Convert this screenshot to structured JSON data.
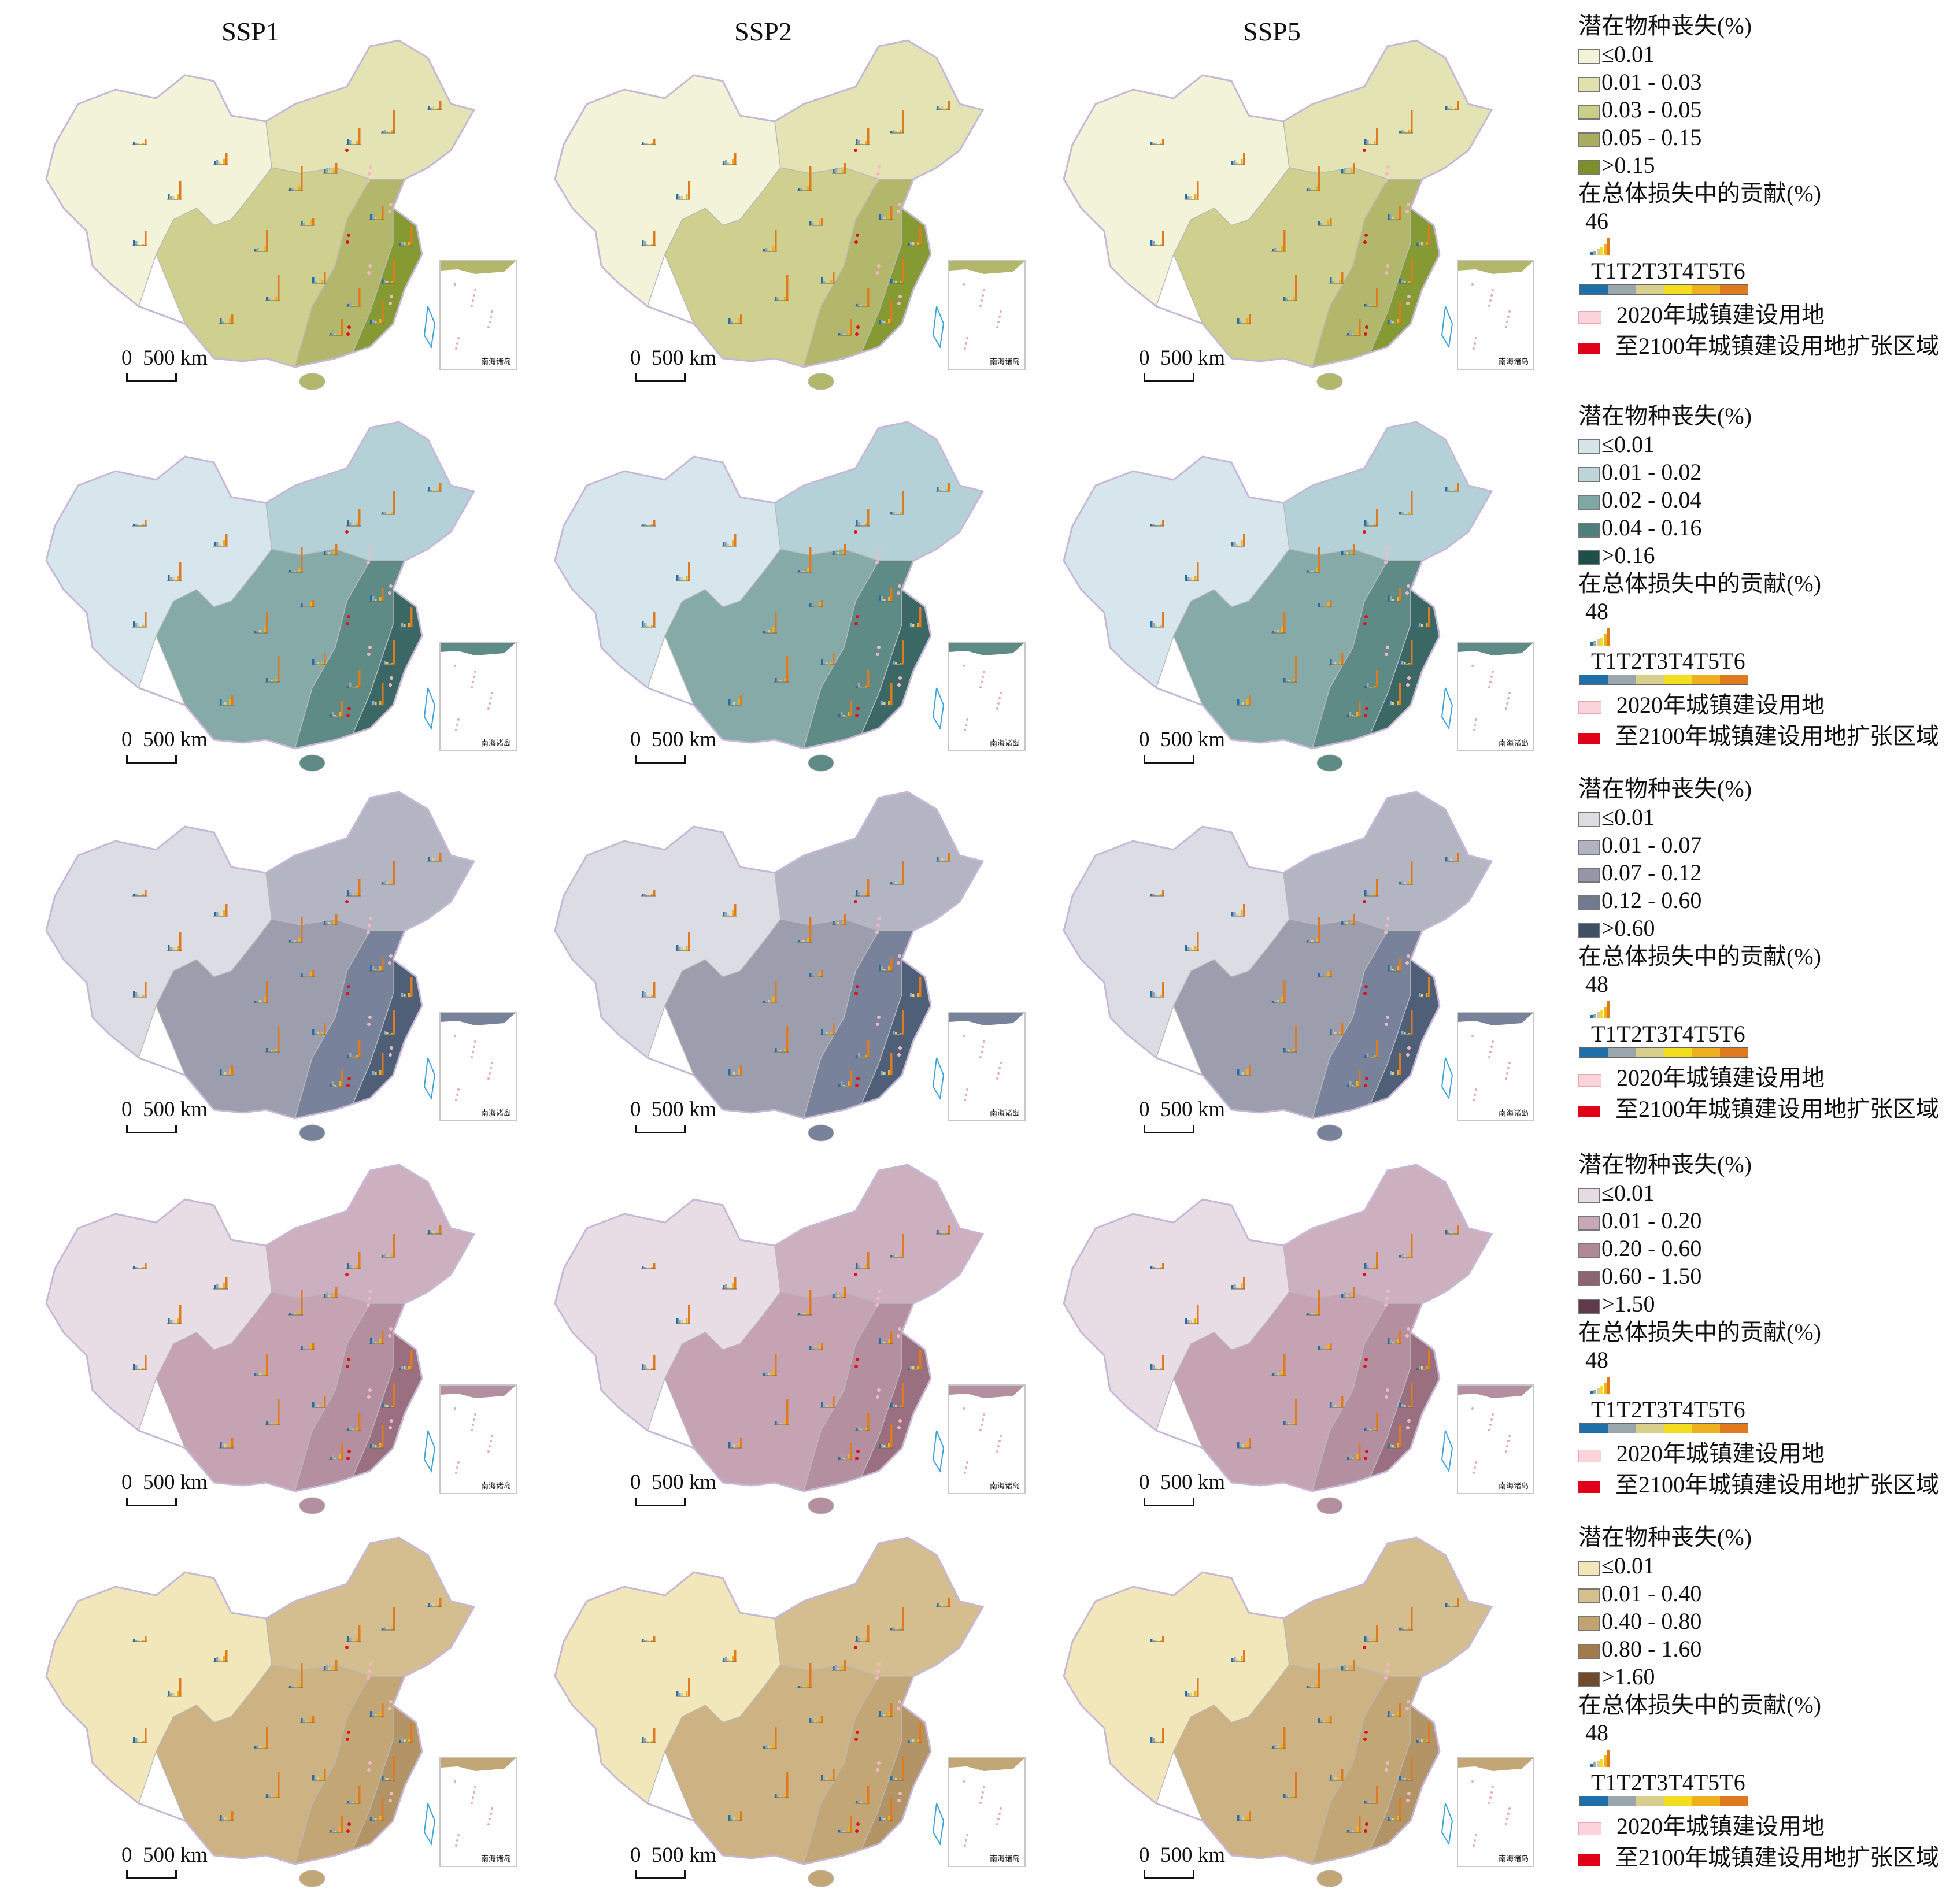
{
  "columns": [
    "SSP1",
    "SSP2",
    "SSP5"
  ],
  "scale_label": "0  500 km",
  "inset_label": "南海诸岛",
  "bar_colors": [
    "#1f6fa8",
    "#9aa8ae",
    "#d8cf8c",
    "#f2dd1e",
    "#efb01e",
    "#e07a1e"
  ],
  "rows": [
    {
      "legend": {
        "title": "潜在物种丧失(%)",
        "classes": [
          {
            "label": "≤0.01",
            "color": "#f3f3d9"
          },
          {
            "label": "0.01 - 0.03",
            "color": "#e1e1ad"
          },
          {
            "label": "0.03 - 0.05",
            "color": "#cdcd8a"
          },
          {
            "label": "0.05 - 0.15",
            "color": "#a9ad5d"
          },
          {
            "label": ">0.15",
            "color": "#7c8f2a"
          }
        ],
        "contribution_title": "在总体损失中的贡献(%)",
        "contribution_max": "46",
        "t_labels": "T1T2T3T4T5T6",
        "urban2020": "2020年城镇建设用地",
        "expansion2100": "至2100年城镇建设用地扩张区域"
      },
      "palette": {
        "west": "#f3f3da",
        "north": "#e3e3b4",
        "central": "#cfcf90",
        "east": "#b2b76b",
        "coast": "#869a33"
      }
    },
    {
      "legend": {
        "title": "潜在物种丧失(%)",
        "classes": [
          {
            "label": "≤0.01",
            "color": "#d5e5ea"
          },
          {
            "label": "0.01 - 0.02",
            "color": "#bdd5da"
          },
          {
            "label": "0.02 - 0.04",
            "color": "#7fa7a4"
          },
          {
            "label": "0.04 - 0.16",
            "color": "#4f7f7c"
          },
          {
            "label": ">0.16",
            "color": "#1f4f4a"
          }
        ],
        "contribution_title": "在总体损失中的贡献(%)",
        "contribution_max": "48",
        "t_labels": "T1T2T3T4T5T6",
        "urban2020": "2020年城镇建设用地",
        "expansion2100": "至2100年城镇建设用地扩张区域"
      },
      "palette": {
        "west": "#d6e6ec",
        "north": "#b5d1d8",
        "central": "#86aaa8",
        "east": "#5f8b87",
        "coast": "#3b6864"
      }
    },
    {
      "legend": {
        "title": "潜在物种丧失(%)",
        "classes": [
          {
            "label": "≤0.01",
            "color": "#dcdde3"
          },
          {
            "label": "0.01 - 0.07",
            "color": "#b1b3c0"
          },
          {
            "label": "0.07 - 0.12",
            "color": "#9597a8"
          },
          {
            "label": "0.12 - 0.60",
            "color": "#707a90"
          },
          {
            "label": ">0.60",
            "color": "#3f4f66"
          }
        ],
        "contribution_title": "在总体损失中的贡献(%)",
        "contribution_max": "48",
        "t_labels": "T1T2T3T4T5T6",
        "urban2020": "2020年城镇建设用地",
        "expansion2100": "至2100年城镇建设用地扩张区域"
      },
      "palette": {
        "west": "#dcdde4",
        "north": "#b3b5c2",
        "central": "#9c9eae",
        "east": "#78829a",
        "coast": "#4f5f78"
      }
    },
    {
      "legend": {
        "title": "潜在物种丧失(%)",
        "classes": [
          {
            "label": "≤0.01",
            "color": "#e6dbe3"
          },
          {
            "label": "0.01 - 0.20",
            "color": "#c9a8b6"
          },
          {
            "label": "0.20 - 0.60",
            "color": "#b08898"
          },
          {
            "label": "0.60 - 1.50",
            "color": "#8c6472"
          },
          {
            "label": ">1.50",
            "color": "#5f3a48"
          }
        ],
        "contribution_title": "在总体损失中的贡献(%)",
        "contribution_max": "48",
        "t_labels": "T1T2T3T4T5T6",
        "urban2020": "2020年城镇建设用地",
        "expansion2100": "至2100年城镇建设用地扩张区域"
      },
      "palette": {
        "west": "#e8dce5",
        "north": "#cdb0bf",
        "central": "#c5a3b3",
        "east": "#b48f9f",
        "coast": "#9a7080"
      }
    },
    {
      "legend": {
        "title": "潜在物种丧失(%)",
        "classes": [
          {
            "label": "≤0.01",
            "color": "#f2e6b8"
          },
          {
            "label": "0.01 - 0.40",
            "color": "#d5bf8c"
          },
          {
            "label": "0.40 - 0.80",
            "color": "#c0a36e"
          },
          {
            "label": "0.80 - 1.60",
            "color": "#a07c4c"
          },
          {
            "label": ">1.60",
            "color": "#6f4a2c"
          }
        ],
        "contribution_title": "在总体损失中的贡献(%)",
        "contribution_max": "48",
        "t_labels": "T1T2T3T4T5T6",
        "urban2020": "2020年城镇建设用地",
        "expansion2100": "至2100年城镇建设用地扩张区域"
      },
      "palette": {
        "west": "#f2e7ba",
        "north": "#d4bd8e",
        "central": "#cdb283",
        "east": "#c3a676",
        "coast": "#b39466"
      }
    }
  ]
}
